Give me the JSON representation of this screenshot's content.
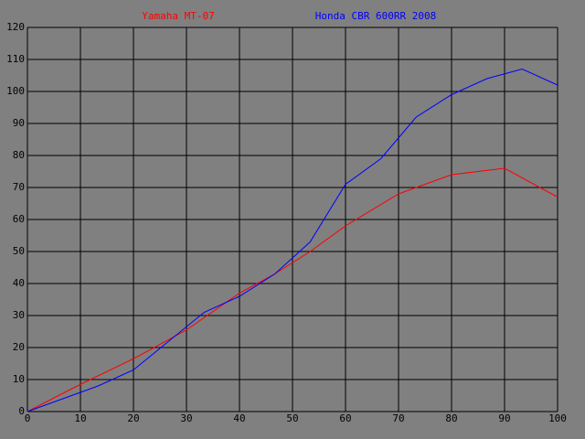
{
  "chart_data": {
    "type": "line",
    "background": "#808080",
    "grid": true,
    "grid_color": "#000000",
    "xlim": [
      0,
      100
    ],
    "xticks": [
      0,
      10,
      20,
      30,
      40,
      50,
      60,
      70,
      80,
      90,
      100
    ],
    "ylim": [
      0,
      120
    ],
    "yticks": [
      0,
      10,
      20,
      30,
      40,
      50,
      60,
      70,
      80,
      90,
      100,
      110,
      120
    ],
    "series": [
      {
        "name": "Yamaha MT-07",
        "color": "#ff0000",
        "x": [
          0,
          10,
          20,
          30,
          40,
          46.67,
          53.33,
          60,
          70,
          73.33,
          80,
          90,
          100
        ],
        "values": [
          0,
          8.5,
          16.5,
          25.5,
          37,
          43,
          50,
          58,
          68,
          70,
          74,
          76,
          67
        ]
      },
      {
        "name": "Honda CBR 600RR 2008",
        "color": "#0000ff",
        "x": [
          0,
          6.67,
          13.33,
          20,
          26.67,
          33.33,
          40,
          46.67,
          53.33,
          60,
          66.67,
          73.33,
          80,
          86.67,
          93.33,
          100
        ],
        "values": [
          0,
          4,
          8,
          13,
          22,
          31,
          36,
          43,
          53,
          71,
          79,
          92,
          99,
          104,
          107,
          102
        ]
      }
    ]
  }
}
